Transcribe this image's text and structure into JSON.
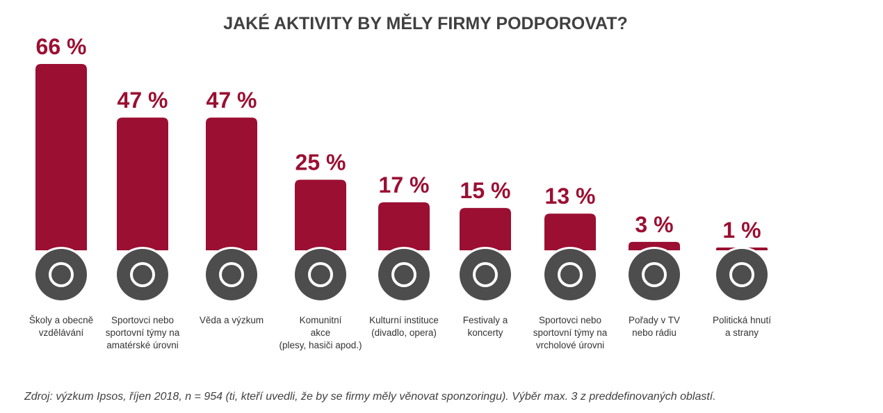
{
  "chart_data": {
    "type": "bar",
    "title": "JAKÉ AKTIVITY BY MĚLY FIRMY PODPOROVAT?",
    "categories": [
      "Školy a obecně\nvzdělávání",
      "Sportovci nebo\nsportovní týmy na\namatérské úrovni",
      "Věda a výzkum",
      "Komunitní\nakce\n(plesy, hasiči apod.)",
      "Kulturní instituce\n(divadlo, opera)",
      "Festivaly a\nkoncerty",
      "Sportovci nebo\nsportovní týmy na\nvrcholové úrovni",
      "Pořady v TV\nnebo rádiu",
      "Politická hnutí\na strany"
    ],
    "values": [
      66,
      47,
      47,
      25,
      17,
      15,
      13,
      3,
      1
    ],
    "value_labels": [
      "66 %",
      "47 %",
      "47 %",
      "25 %",
      "17 %",
      "15 %",
      "13 %",
      "3 %",
      "1 %"
    ],
    "color": "#9b0f32",
    "source": "Zdroj: výzkum Ipsos, říjen 2018, n = 954 (ti, kteří uvedli, že by se firmy měly věnovat sponzoringu). Výběr max. 3 z preddefinovaných oblastí."
  }
}
